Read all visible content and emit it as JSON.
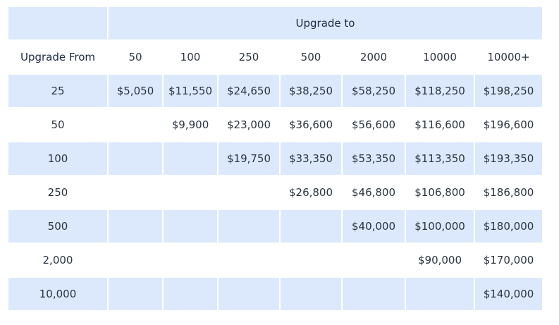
{
  "table": {
    "upgrade_to_label": "Upgrade to",
    "upgrade_from_label": "Upgrade From",
    "columns": [
      "50",
      "100",
      "250",
      "500",
      "2000",
      "10000",
      "10000+"
    ],
    "rows": [
      {
        "from": "25",
        "prices": [
          "$5,050",
          "$11,550",
          "$24,650",
          "$38,250",
          "$58,250",
          "$118,250",
          "$198,250"
        ]
      },
      {
        "from": "50",
        "prices": [
          "",
          "$9,900",
          "$23,000",
          "$36,600",
          "$56,600",
          "$116,600",
          "$196,600"
        ]
      },
      {
        "from": "100",
        "prices": [
          "",
          "",
          "$19,750",
          "$33,350",
          "$53,350",
          "$113,350",
          "$193,350"
        ]
      },
      {
        "from": "250",
        "prices": [
          "",
          "",
          "",
          "$26,800",
          "$46,800",
          "$106,800",
          "$186,800"
        ]
      },
      {
        "from": "500",
        "prices": [
          "",
          "",
          "",
          "",
          "$40,000",
          "$100,000",
          "$180,000"
        ]
      },
      {
        "from": "2,000",
        "prices": [
          "",
          "",
          "",
          "",
          "",
          "$90,000",
          "$170,000"
        ]
      },
      {
        "from": "10,000",
        "prices": [
          "",
          "",
          "",
          "",
          "",
          "",
          "$140,000"
        ]
      }
    ]
  },
  "colors": {
    "shaded_row": "#dce9fc",
    "heading_text": "#1b2a44",
    "body_text": "#2b3440"
  }
}
